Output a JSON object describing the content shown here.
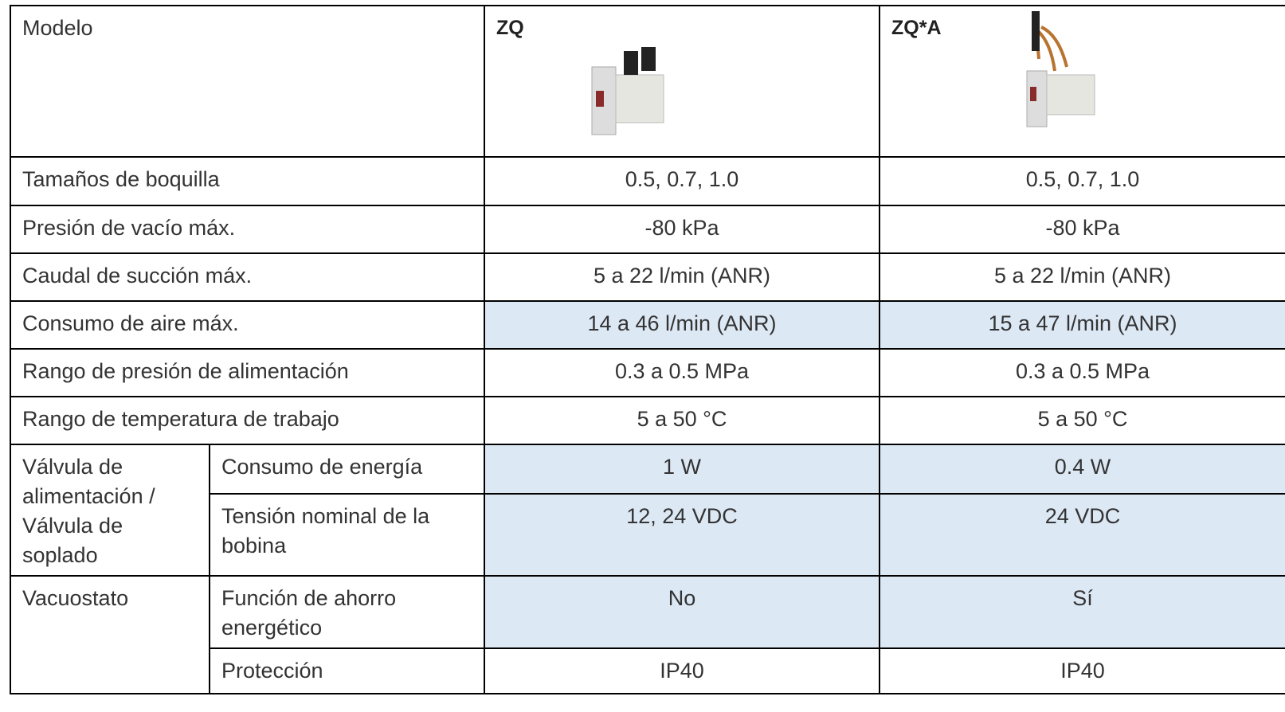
{
  "table": {
    "header": [
      "Modelo",
      "ZQ",
      "ZQ*A"
    ],
    "rows": [
      {
        "label": "Tamaños de boquilla",
        "values": [
          "0.5, 0.7, 1.0",
          "0.5, 0.7, 1.0"
        ]
      },
      {
        "label": "Presión de vacío máx.",
        "values": [
          "-80 kPa",
          "-80 kPa"
        ]
      },
      {
        "label": "Caudal de succión máx.",
        "values": [
          "5 a 22 l/min (ANR)",
          "5 a 22 l/min (ANR)"
        ]
      },
      {
        "label": "Consumo de aire máx.",
        "values": [
          "14 a 46 l/min (ANR)",
          "15 a 47 l/min (ANR)"
        ]
      },
      {
        "label": "Rango de presión de alimentación",
        "values": [
          "0.3 a 0.5 MPa",
          "0.3 a 0.5 MPa"
        ]
      },
      {
        "label": "Rango de temperatura de trabajo",
        "values": [
          "5 a 50 °C",
          "5 a 50 °C"
        ]
      }
    ],
    "groups": [
      {
        "label": "Válvula de alimentación / Válvula de soplado",
        "rows": [
          {
            "label": "Consumo de energía",
            "values": [
              "1 W",
              "0.4 W"
            ]
          },
          {
            "label": "Tensión nominal de la bobina",
            "values": [
              "12, 24 VDC",
              "24 VDC"
            ]
          }
        ]
      },
      {
        "label": "Vacuostato",
        "rows": [
          {
            "label": "Función de ahorro energético",
            "values": [
              "No",
              "Sí"
            ]
          },
          {
            "label": "Protección",
            "values": [
              "IP40",
              "IP40"
            ]
          }
        ]
      }
    ]
  }
}
